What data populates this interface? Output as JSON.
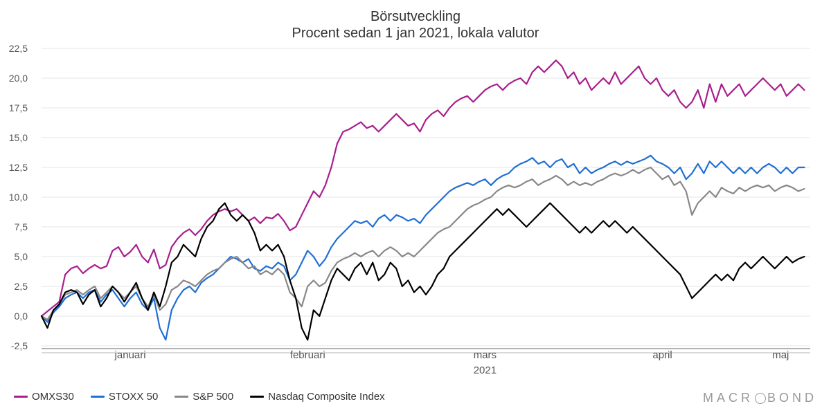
{
  "title_line1": "Börsutveckling",
  "title_line2": "Procent sedan 1 jan 2021, lokala valutor",
  "chart": {
    "type": "line",
    "background_color": "#ffffff",
    "grid_color": "#e5e5e5",
    "axis_color": "#666666",
    "ylim": [
      -2.5,
      22.5
    ],
    "yticks": [
      -2.5,
      0,
      2.5,
      5.0,
      7.5,
      10.0,
      12.5,
      15.0,
      17.5,
      20.0,
      22.5
    ],
    "ytick_labels": [
      "-2,5",
      "0,0",
      "2,5",
      "5,0",
      "7,5",
      "10,0",
      "12,5",
      "15,0",
      "17,5",
      "20,0",
      "22,5"
    ],
    "xlim": [
      0,
      130
    ],
    "xticks": [
      15,
      45,
      75,
      105,
      125
    ],
    "xtick_labels": [
      "januari",
      "februari",
      "mars",
      "april",
      "maj"
    ],
    "x_year_label": "2021",
    "x_year_pos": 75,
    "line_width": 2.2,
    "title_fontsize": 20,
    "label_fontsize": 14,
    "series": [
      {
        "name": "OMXS30",
        "color": "#a81e8c",
        "data": [
          0,
          0.4,
          0.8,
          1.2,
          3.5,
          4.0,
          4.2,
          3.6,
          4.0,
          4.3,
          4.0,
          4.2,
          5.5,
          5.8,
          5.0,
          5.4,
          6.0,
          5.0,
          4.5,
          5.6,
          4.0,
          4.3,
          5.8,
          6.5,
          7.0,
          7.3,
          6.8,
          7.3,
          8.0,
          8.5,
          8.8,
          9.0,
          8.8,
          9.0,
          8.5,
          8.0,
          8.3,
          7.8,
          8.3,
          8.2,
          8.6,
          8.0,
          7.2,
          7.5,
          8.5,
          9.5,
          10.5,
          10.0,
          11.0,
          12.5,
          14.5,
          15.5,
          15.7,
          16.0,
          16.3,
          15.8,
          16.0,
          15.5,
          16.0,
          16.5,
          17.0,
          16.5,
          16.0,
          16.2,
          15.5,
          16.5,
          17.0,
          17.3,
          16.8,
          17.5,
          18.0,
          18.3,
          18.5,
          18.0,
          18.5,
          19.0,
          19.3,
          19.5,
          19.0,
          19.5,
          19.8,
          20.0,
          19.5,
          20.5,
          21.0,
          20.5,
          21.0,
          21.5,
          21.0,
          20.0,
          20.5,
          19.5,
          20.0,
          19.0,
          19.5,
          20.0,
          19.5,
          20.5,
          19.5,
          20.0,
          20.5,
          21.0,
          20.0,
          19.5,
          20.0,
          19.0,
          18.5,
          19.0,
          18.0,
          17.5,
          18.0,
          19.0,
          17.5,
          19.5,
          18.0,
          19.5,
          18.5,
          19.0,
          19.5,
          18.5,
          19.0,
          19.5,
          20.0,
          19.5,
          19.0,
          19.5,
          18.5,
          19.0,
          19.5,
          19.0
        ]
      },
      {
        "name": "STOXX 50",
        "color": "#1f6fd4",
        "data": [
          0,
          -0.5,
          0.3,
          0.8,
          1.5,
          1.8,
          2.0,
          1.5,
          2.0,
          2.2,
          1.2,
          1.8,
          2.2,
          1.5,
          0.8,
          1.5,
          2.0,
          1.0,
          0.5,
          1.5,
          -1.0,
          -2.0,
          0.5,
          1.5,
          2.2,
          2.5,
          2.0,
          2.8,
          3.2,
          3.5,
          4.0,
          4.5,
          5.0,
          4.8,
          4.5,
          4.8,
          4.0,
          3.8,
          4.2,
          4.0,
          4.5,
          4.2,
          3.0,
          3.5,
          4.5,
          5.5,
          5.0,
          4.2,
          4.8,
          5.8,
          6.5,
          7.0,
          7.5,
          8.0,
          7.8,
          8.0,
          7.5,
          8.2,
          8.5,
          8.0,
          8.5,
          8.3,
          8.0,
          8.2,
          7.8,
          8.5,
          9.0,
          9.5,
          10.0,
          10.5,
          10.8,
          11.0,
          11.2,
          11.0,
          11.3,
          11.5,
          11.0,
          11.5,
          11.8,
          12.0,
          12.5,
          12.8,
          13.0,
          13.3,
          12.8,
          13.0,
          12.5,
          13.0,
          13.2,
          12.5,
          12.8,
          12.0,
          12.5,
          12.0,
          12.3,
          12.5,
          12.8,
          13.0,
          12.7,
          13.0,
          12.8,
          13.0,
          13.2,
          13.5,
          13.0,
          12.8,
          12.5,
          12.0,
          12.5,
          11.5,
          12.0,
          12.8,
          12.0,
          13.0,
          12.5,
          13.0,
          12.5,
          12.0,
          12.5,
          12.0,
          12.5,
          12.0,
          12.5,
          12.8,
          12.5,
          12.0,
          12.5,
          12.0,
          12.5,
          12.5
        ]
      },
      {
        "name": "S&P 500",
        "color": "#888888",
        "data": [
          0,
          -0.3,
          0.5,
          1.0,
          1.8,
          2.0,
          2.2,
          1.8,
          2.2,
          2.5,
          1.5,
          2.0,
          2.5,
          2.0,
          1.5,
          2.0,
          2.5,
          1.5,
          0.8,
          1.8,
          0.5,
          1.0,
          2.2,
          2.5,
          3.0,
          2.8,
          2.5,
          3.0,
          3.5,
          3.8,
          4.0,
          4.5,
          4.8,
          5.0,
          4.5,
          4.0,
          4.2,
          3.5,
          3.8,
          3.5,
          4.0,
          3.5,
          2.0,
          1.5,
          0.8,
          2.5,
          3.0,
          2.5,
          2.8,
          3.8,
          4.5,
          4.8,
          5.0,
          5.3,
          5.0,
          5.3,
          5.5,
          5.0,
          5.5,
          5.8,
          5.5,
          5.0,
          5.3,
          5.0,
          5.5,
          6.0,
          6.5,
          7.0,
          7.3,
          7.5,
          8.0,
          8.5,
          9.0,
          9.3,
          9.5,
          9.8,
          10.0,
          10.5,
          10.8,
          11.0,
          10.8,
          11.0,
          11.3,
          11.5,
          11.0,
          11.3,
          11.5,
          11.8,
          11.5,
          11.0,
          11.3,
          11.0,
          11.2,
          11.0,
          11.3,
          11.5,
          11.8,
          12.0,
          11.8,
          12.0,
          12.3,
          12.0,
          12.3,
          12.5,
          12.0,
          11.5,
          11.8,
          11.0,
          11.3,
          10.5,
          8.5,
          9.5,
          10.0,
          10.5,
          10.0,
          10.8,
          10.5,
          10.3,
          10.8,
          10.5,
          10.8,
          11.0,
          10.8,
          11.0,
          10.5,
          10.8,
          11.0,
          10.8,
          10.5,
          10.7
        ]
      },
      {
        "name": "Nasdaq Composite Index",
        "color": "#000000",
        "data": [
          0,
          -1.0,
          0.5,
          1.0,
          2.0,
          2.2,
          2.0,
          1.0,
          1.8,
          2.2,
          0.8,
          1.5,
          2.5,
          2.0,
          1.2,
          2.0,
          2.8,
          1.5,
          0.5,
          2.0,
          0.8,
          2.5,
          4.5,
          5.0,
          6.0,
          5.5,
          5.0,
          6.5,
          7.5,
          8.0,
          9.0,
          9.5,
          8.5,
          8.0,
          8.5,
          8.0,
          7.0,
          5.5,
          6.0,
          5.5,
          6.0,
          5.0,
          3.0,
          1.5,
          -1.0,
          -2.0,
          0.5,
          0.0,
          1.5,
          3.0,
          4.0,
          3.5,
          3.0,
          4.0,
          4.5,
          3.5,
          4.5,
          3.0,
          3.5,
          4.5,
          4.0,
          2.5,
          3.0,
          2.0,
          2.5,
          1.8,
          2.5,
          3.5,
          4.0,
          5.0,
          5.5,
          6.0,
          6.5,
          7.0,
          7.5,
          8.0,
          8.5,
          9.0,
          8.5,
          9.0,
          8.5,
          8.0,
          7.5,
          8.0,
          8.5,
          9.0,
          9.5,
          9.0,
          8.5,
          8.0,
          7.5,
          7.0,
          7.5,
          7.0,
          7.5,
          8.0,
          7.5,
          8.0,
          7.5,
          7.0,
          7.5,
          7.0,
          6.5,
          6.0,
          5.5,
          5.0,
          4.5,
          4.0,
          3.5,
          2.5,
          1.5,
          2.0,
          2.5,
          3.0,
          3.5,
          3.0,
          3.5,
          3.0,
          4.0,
          4.5,
          4.0,
          4.5,
          5.0,
          4.5,
          4.0,
          4.5,
          5.0,
          4.5,
          4.8,
          5.0
        ]
      }
    ]
  },
  "legend": [
    {
      "label": "OMXS30",
      "color": "#a81e8c"
    },
    {
      "label": "STOXX 50",
      "color": "#1f6fd4"
    },
    {
      "label": "S&P 500",
      "color": "#888888"
    },
    {
      "label": "Nasdaq Composite Index",
      "color": "#000000"
    }
  ],
  "brand_pre": "MACR",
  "brand_post": "BOND"
}
